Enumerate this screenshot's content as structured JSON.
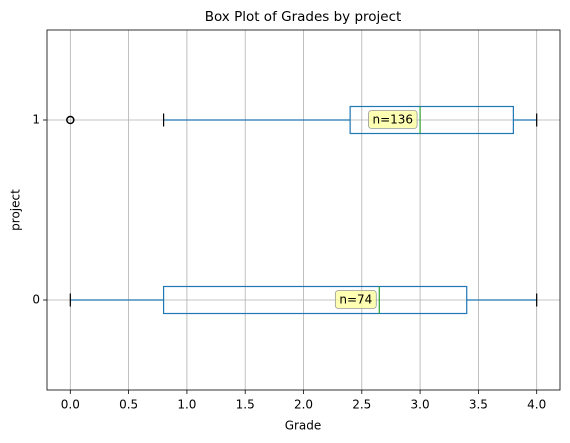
{
  "chart_data": {
    "type": "boxplot",
    "title": "Box Plot of Grades by project",
    "xlabel": "Grade",
    "ylabel": "project",
    "categories": [
      "0",
      "1"
    ],
    "boxes": [
      {
        "whislo": 0.0,
        "q1": 0.8,
        "med": 2.65,
        "q3": 3.4,
        "whishi": 4.0,
        "annotation": "n=74"
      },
      {
        "whislo": 0.8,
        "q1": 2.4,
        "med": 3.0,
        "q3": 3.8,
        "whishi": 4.0,
        "fliers": [
          0.0
        ],
        "annotation": "n=136"
      }
    ],
    "box_color": "#1f77b4",
    "median_color": "#2ca02c",
    "annotation_color": "#ffff99",
    "xlim": [
      -0.2,
      4.2
    ],
    "xticks": [
      {
        "value": 0,
        "label": "0.0"
      },
      0.5,
      {
        "value": 1,
        "label": "1.0"
      },
      1.5,
      {
        "value": 2,
        "label": "2.0"
      },
      2.5,
      {
        "value": 3,
        "label": "3.0"
      },
      3.5,
      {
        "value": 4,
        "label": "4.0"
      }
    ],
    "ylim": [
      -0.5,
      1.5
    ],
    "grid": true
  }
}
